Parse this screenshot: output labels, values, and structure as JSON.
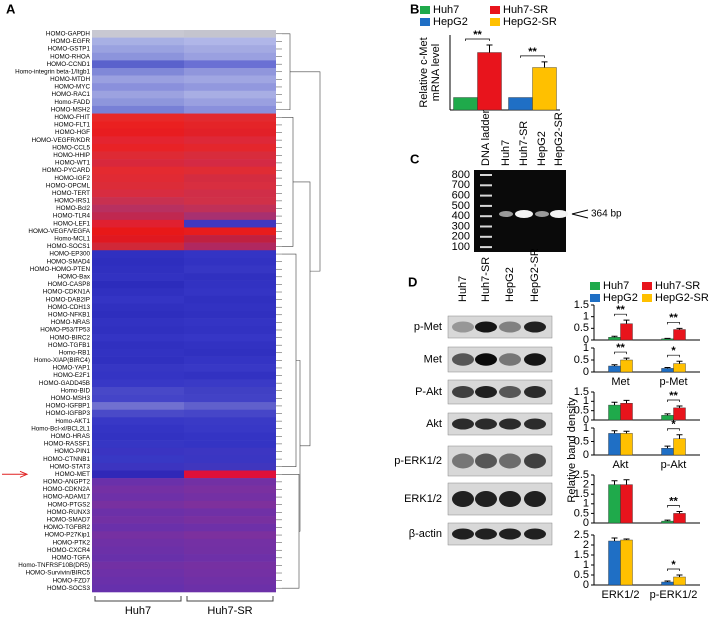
{
  "panel_labels": [
    "A",
    "B",
    "C",
    "D"
  ],
  "heatmap": {
    "groups": [
      "Huh7",
      "Huh7-SR"
    ],
    "genes": [
      "HOMO-GAPDH",
      "HOMO-EGFR",
      "HOMO-GSTP1",
      "HOMO-RHOA",
      "HOMO-CCND1",
      "Homo-integrin beta-1/Itgb1",
      "HOMO-MTDH",
      "HOMO-MYC",
      "HOMO-RAC1",
      "Homo-FADD",
      "HOMO-MSH2",
      "HOMO-FHIT",
      "HOMO-FLT1",
      "HOMO-HGF",
      "HOMO-VEGFR/KDR",
      "HOMO-CCL5",
      "HOMO-HHIP",
      "HOMO-WT1",
      "HOMO-PYCARD",
      "HOMO-IGF2",
      "HOMO-OPCML",
      "HOMO-TERT",
      "HOMO-IRS1",
      "HOMO-Bcl2",
      "HOMO-TLR4",
      "HOMO-LEF1",
      "HOMO-VEGF/VEGFA",
      "Homo-MCL1",
      "HOMO-SOCS1",
      "HOMO-EP300",
      "HOMO-SMAD4",
      "HOMO-HOMO-PTEN",
      "HOMO-Bax",
      "HOMO-CASP8",
      "HOMO-CDKN1A",
      "HOMO-DAB2IP",
      "HOMO-CDH13",
      "HOMO-NFKB1",
      "HOMO-NRAS",
      "HOMO-P53/TP53",
      "HOMO-BIRC2",
      "HOMO-TGFB1",
      "Homo-RB1",
      "Homo-XIAP(BIRC4)",
      "HOMO-YAP1",
      "HOMO-E2F1",
      "HOMO-GADD45B",
      "Homo-BID",
      "HOMO-MSH3",
      "HOMO-IGFBP1",
      "HOMO-IGFBP3",
      "Homo-AKT1",
      "Homo-Bcl-xl/BCL2L1",
      "HOMO-HRAS",
      "HOMO-RASSF1",
      "HOMO-PIN1",
      "HOMO-CTNNB1",
      "HOMO-STAT3",
      "HOMO-MET",
      "HOMO-ANGPT2",
      "HOMO-CDKN2A",
      "HOMO-ADAM17",
      "HOMO-PTGS2",
      "HOMO-RUNX3",
      "HOMO-SMAD7",
      "HOMO-TGFBR2",
      "HOMO-P27Kip1",
      "HOMO-PTK2",
      "HOMO-CXCR4",
      "HOMO-TGFA",
      "Homo-TNFRSF10B(DR5)",
      "HOMO-Survivin/BIRC5",
      "HOMO-FZD7",
      "HOMO-SOCS3"
    ],
    "colors": [
      [
        "#c8c8d2",
        "#c4c4ce"
      ],
      [
        "#a8b0e4",
        "#b0b6e8"
      ],
      [
        "#9aa2e0",
        "#a4aae2"
      ],
      [
        "#8c94dc",
        "#9aa0e0"
      ],
      [
        "#5a62cc",
        "#6a70d4"
      ],
      [
        "#8088d8",
        "#9096dc"
      ],
      [
        "#9aa0e0",
        "#a0a6e2"
      ],
      [
        "#8a90dc",
        "#9298de"
      ],
      [
        "#9ca2e0",
        "#a8aee4"
      ],
      [
        "#8e96dc",
        "#9aa0e0"
      ],
      [
        "#7880d6",
        "#8a90dc"
      ],
      [
        "#e82828",
        "#e22a30"
      ],
      [
        "#ea2020",
        "#e42428"
      ],
      [
        "#e81c20",
        "#e22028"
      ],
      [
        "#e42430",
        "#de2838"
      ],
      [
        "#e82226",
        "#e4262c"
      ],
      [
        "#de2a34",
        "#d82c3c"
      ],
      [
        "#d8283c",
        "#d42a44"
      ],
      [
        "#e42a30",
        "#e02c34"
      ],
      [
        "#e02a34",
        "#d42c40"
      ],
      [
        "#dc2c38",
        "#d82e40"
      ],
      [
        "#d82c40",
        "#d02e48"
      ],
      [
        "#c83050",
        "#d03048"
      ],
      [
        "#b83060",
        "#c03058"
      ],
      [
        "#c02850",
        "#a83070"
      ],
      [
        "#e02030",
        "#4038c0"
      ],
      [
        "#e81818",
        "#e81c1c"
      ],
      [
        "#e01820",
        "#c02040"
      ],
      [
        "#d02838",
        "#b02860"
      ],
      [
        "#3030c0",
        "#3434c4"
      ],
      [
        "#2e2ebe",
        "#3232c2"
      ],
      [
        "#3030c0",
        "#3636c4"
      ],
      [
        "#3232c2",
        "#3030c0"
      ],
      [
        "#2c2cbc",
        "#3232c2"
      ],
      [
        "#3030c0",
        "#3434c4"
      ],
      [
        "#3434c4",
        "#3030c0"
      ],
      [
        "#3030c0",
        "#3232c2"
      ],
      [
        "#2e2ebe",
        "#3030c0"
      ],
      [
        "#3232c2",
        "#3434c4"
      ],
      [
        "#3030c0",
        "#3232c2"
      ],
      [
        "#3434c4",
        "#3636c6"
      ],
      [
        "#3030c0",
        "#3232c2"
      ],
      [
        "#3232c2",
        "#3030c0"
      ],
      [
        "#3030c0",
        "#3434c4"
      ],
      [
        "#3636c4",
        "#3838c6"
      ],
      [
        "#3434c4",
        "#3232c2"
      ],
      [
        "#3838c6",
        "#3a3ac6"
      ],
      [
        "#4848c8",
        "#4040c4"
      ],
      [
        "#4444c8",
        "#4242c6"
      ],
      [
        "#7070d0",
        "#6060cc"
      ],
      [
        "#4a4ac8",
        "#4646c8"
      ],
      [
        "#3838c6",
        "#3a3ac6"
      ],
      [
        "#3434c4",
        "#3838c6"
      ],
      [
        "#3232c2",
        "#3434c4"
      ],
      [
        "#3636c4",
        "#3434c4"
      ],
      [
        "#3a34c2",
        "#3c36c2"
      ],
      [
        "#3838c4",
        "#3a36c2"
      ],
      [
        "#3c34c0",
        "#4036be"
      ],
      [
        "#3028b8",
        "#e0103a"
      ],
      [
        "#6a30aa",
        "#7230a4"
      ],
      [
        "#7430a4",
        "#7a30a0"
      ],
      [
        "#6e30a8",
        "#7430a4"
      ],
      [
        "#7830a0",
        "#7e309c"
      ],
      [
        "#6c30a8",
        "#7030a6"
      ],
      [
        "#7230a4",
        "#7830a0"
      ],
      [
        "#6a30aa",
        "#6e30a8"
      ],
      [
        "#7630a2",
        "#7c309e"
      ],
      [
        "#7030a6",
        "#7430a4"
      ],
      [
        "#6c30a8",
        "#7230a4"
      ],
      [
        "#6830aa",
        "#6e30a8"
      ],
      [
        "#7230a4",
        "#7630a2"
      ],
      [
        "#6e30a8",
        "#7430a4"
      ],
      [
        "#6a30aa",
        "#7030a6"
      ],
      [
        "#6630ac",
        "#6c30a8"
      ]
    ]
  },
  "gel": {
    "ladder_label": "DNA ladder",
    "lanes": [
      "Huh7",
      "Huh7-SR",
      "HepG2",
      "HepG2-SR"
    ],
    "sizes": [
      800,
      700,
      600,
      500,
      400,
      300,
      200,
      100
    ],
    "band_label": "364 bp"
  },
  "blot": {
    "lanes": [
      "Huh7",
      "Huh7-SR",
      "HepG2",
      "HepG2-SR"
    ],
    "proteins": [
      "p-Met",
      "Met",
      "P-Akt",
      "Akt",
      "p-ERK1/2",
      "ERK1/2",
      "β-actin"
    ]
  },
  "legend_d": [
    {
      "name": "Huh7",
      "color": "#1faa4b"
    },
    {
      "name": "Huh7-SR",
      "color": "#e8141c"
    },
    {
      "name": "HepG2",
      "color": "#1f6fc5"
    },
    {
      "name": "HepG2-SR",
      "color": "#ffc000"
    }
  ],
  "ylabel_d": "Relative band density",
  "chart_data": [
    {
      "type": "bar",
      "ylabel": [
        "Relative c-Met",
        "mRNA level"
      ],
      "categories": [
        null,
        null
      ],
      "ylim": [
        0,
        6
      ],
      "series": [
        {
          "name": "Huh7",
          "color": "#1faa4b",
          "values": [
            1,
            null
          ],
          "errors": [
            null,
            null
          ]
        },
        {
          "name": "Huh7-SR",
          "color": "#e8141c",
          "values": [
            4.6,
            null
          ],
          "errors": [
            0.6,
            null
          ]
        },
        {
          "name": "HepG2",
          "color": "#1f6fc5",
          "values": [
            null,
            1
          ],
          "errors": [
            null,
            null
          ]
        },
        {
          "name": "HepG2-SR",
          "color": "#ffc000",
          "values": [
            null,
            3.4
          ],
          "errors": [
            null,
            0.45
          ]
        }
      ],
      "annotations": [
        "**",
        "**"
      ]
    },
    {
      "type": "bar",
      "categories": [
        null,
        null
      ],
      "ylim": [
        0,
        1.5
      ],
      "yticks": [
        0,
        0.5,
        1,
        1.5
      ],
      "series": [
        {
          "color": "#1faa4b",
          "values": [
            0.12,
            0.05
          ],
          "errors": [
            0.04,
            0.02
          ]
        },
        {
          "color": "#e8141c",
          "values": [
            0.7,
            0.45
          ],
          "errors": [
            0.15,
            0.05
          ]
        }
      ],
      "annotations": [
        "**",
        "**"
      ]
    },
    {
      "type": "bar",
      "categories": [
        "Met",
        "p-Met"
      ],
      "ylim": [
        0,
        1
      ],
      "yticks": [
        0,
        0.5,
        1
      ],
      "series": [
        {
          "color": "#1f6fc5",
          "values": [
            0.25,
            0.15
          ],
          "errors": [
            0.05,
            0.04
          ]
        },
        {
          "color": "#ffc000",
          "values": [
            0.5,
            0.35
          ],
          "errors": [
            0.08,
            0.1
          ]
        }
      ],
      "annotations": [
        "**",
        "*"
      ]
    },
    {
      "type": "bar",
      "categories": [
        null,
        null
      ],
      "ylim": [
        0,
        1.5
      ],
      "yticks": [
        0,
        0.5,
        1,
        1.5
      ],
      "series": [
        {
          "color": "#1faa4b",
          "values": [
            0.8,
            0.25
          ],
          "errors": [
            0.15,
            0.08
          ]
        },
        {
          "color": "#e8141c",
          "values": [
            0.9,
            0.65
          ],
          "errors": [
            0.15,
            0.1
          ]
        }
      ],
      "annotations": [
        "**"
      ]
    },
    {
      "type": "bar",
      "categories": [
        "Akt",
        "p-Akt"
      ],
      "ylim": [
        0,
        1
      ],
      "yticks": [
        0,
        0.5,
        1
      ],
      "series": [
        {
          "color": "#1f6fc5",
          "values": [
            0.8,
            0.25
          ],
          "errors": [
            0.1,
            0.08
          ]
        },
        {
          "color": "#ffc000",
          "values": [
            0.8,
            0.6
          ],
          "errors": [
            0.08,
            0.15
          ]
        }
      ],
      "annotations": [
        "*"
      ]
    },
    {
      "type": "bar",
      "categories": [
        null,
        null
      ],
      "ylim": [
        0,
        2.5
      ],
      "yticks": [
        0,
        0.5,
        1,
        1.5,
        2,
        2.5
      ],
      "series": [
        {
          "color": "#1faa4b",
          "values": [
            2,
            0.1
          ],
          "errors": [
            0.2,
            0.05
          ]
        },
        {
          "color": "#e8141c",
          "values": [
            2,
            0.5
          ],
          "errors": [
            0.25,
            0.1
          ]
        }
      ],
      "annotations": [
        "**"
      ]
    },
    {
      "type": "bar",
      "categories": [
        "ERK1/2",
        "p-ERK1/2"
      ],
      "ylim": [
        0,
        2.5
      ],
      "yticks": [
        0,
        0.5,
        1,
        1.5,
        2,
        2.5
      ],
      "series": [
        {
          "color": "#1f6fc5",
          "values": [
            2.2,
            0.15
          ],
          "errors": [
            0.15,
            0.05
          ]
        },
        {
          "color": "#ffc000",
          "values": [
            2.25,
            0.4
          ],
          "errors": [
            0.05,
            0.1
          ]
        }
      ],
      "annotations": [
        "*"
      ]
    }
  ]
}
